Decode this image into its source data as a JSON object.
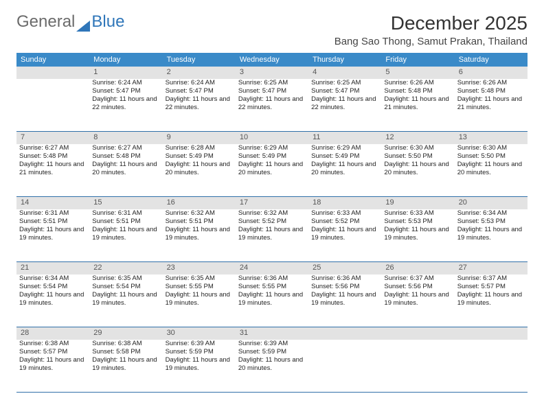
{
  "logo": {
    "part1": "General",
    "part2": "Blue"
  },
  "title": "December 2025",
  "location": "Bang Sao Thong, Samut Prakan, Thailand",
  "weekday_bg": "#3a8ac8",
  "daynum_bg": "#e3e3e3",
  "border_color": "#2f6fa8",
  "weekdays": [
    "Sunday",
    "Monday",
    "Tuesday",
    "Wednesday",
    "Thursday",
    "Friday",
    "Saturday"
  ],
  "weeks": [
    {
      "nums": [
        "",
        "1",
        "2",
        "3",
        "4",
        "5",
        "6"
      ],
      "cells": [
        {
          "sunrise": "",
          "sunset": "",
          "daylight": ""
        },
        {
          "sunrise": "Sunrise: 6:24 AM",
          "sunset": "Sunset: 5:47 PM",
          "daylight": "Daylight: 11 hours and 22 minutes."
        },
        {
          "sunrise": "Sunrise: 6:24 AM",
          "sunset": "Sunset: 5:47 PM",
          "daylight": "Daylight: 11 hours and 22 minutes."
        },
        {
          "sunrise": "Sunrise: 6:25 AM",
          "sunset": "Sunset: 5:47 PM",
          "daylight": "Daylight: 11 hours and 22 minutes."
        },
        {
          "sunrise": "Sunrise: 6:25 AM",
          "sunset": "Sunset: 5:47 PM",
          "daylight": "Daylight: 11 hours and 22 minutes."
        },
        {
          "sunrise": "Sunrise: 6:26 AM",
          "sunset": "Sunset: 5:48 PM",
          "daylight": "Daylight: 11 hours and 21 minutes."
        },
        {
          "sunrise": "Sunrise: 6:26 AM",
          "sunset": "Sunset: 5:48 PM",
          "daylight": "Daylight: 11 hours and 21 minutes."
        }
      ]
    },
    {
      "nums": [
        "7",
        "8",
        "9",
        "10",
        "11",
        "12",
        "13"
      ],
      "cells": [
        {
          "sunrise": "Sunrise: 6:27 AM",
          "sunset": "Sunset: 5:48 PM",
          "daylight": "Daylight: 11 hours and 21 minutes."
        },
        {
          "sunrise": "Sunrise: 6:27 AM",
          "sunset": "Sunset: 5:48 PM",
          "daylight": "Daylight: 11 hours and 20 minutes."
        },
        {
          "sunrise": "Sunrise: 6:28 AM",
          "sunset": "Sunset: 5:49 PM",
          "daylight": "Daylight: 11 hours and 20 minutes."
        },
        {
          "sunrise": "Sunrise: 6:29 AM",
          "sunset": "Sunset: 5:49 PM",
          "daylight": "Daylight: 11 hours and 20 minutes."
        },
        {
          "sunrise": "Sunrise: 6:29 AM",
          "sunset": "Sunset: 5:49 PM",
          "daylight": "Daylight: 11 hours and 20 minutes."
        },
        {
          "sunrise": "Sunrise: 6:30 AM",
          "sunset": "Sunset: 5:50 PM",
          "daylight": "Daylight: 11 hours and 20 minutes."
        },
        {
          "sunrise": "Sunrise: 6:30 AM",
          "sunset": "Sunset: 5:50 PM",
          "daylight": "Daylight: 11 hours and 20 minutes."
        }
      ]
    },
    {
      "nums": [
        "14",
        "15",
        "16",
        "17",
        "18",
        "19",
        "20"
      ],
      "cells": [
        {
          "sunrise": "Sunrise: 6:31 AM",
          "sunset": "Sunset: 5:51 PM",
          "daylight": "Daylight: 11 hours and 19 minutes."
        },
        {
          "sunrise": "Sunrise: 6:31 AM",
          "sunset": "Sunset: 5:51 PM",
          "daylight": "Daylight: 11 hours and 19 minutes."
        },
        {
          "sunrise": "Sunrise: 6:32 AM",
          "sunset": "Sunset: 5:51 PM",
          "daylight": "Daylight: 11 hours and 19 minutes."
        },
        {
          "sunrise": "Sunrise: 6:32 AM",
          "sunset": "Sunset: 5:52 PM",
          "daylight": "Daylight: 11 hours and 19 minutes."
        },
        {
          "sunrise": "Sunrise: 6:33 AM",
          "sunset": "Sunset: 5:52 PM",
          "daylight": "Daylight: 11 hours and 19 minutes."
        },
        {
          "sunrise": "Sunrise: 6:33 AM",
          "sunset": "Sunset: 5:53 PM",
          "daylight": "Daylight: 11 hours and 19 minutes."
        },
        {
          "sunrise": "Sunrise: 6:34 AM",
          "sunset": "Sunset: 5:53 PM",
          "daylight": "Daylight: 11 hours and 19 minutes."
        }
      ]
    },
    {
      "nums": [
        "21",
        "22",
        "23",
        "24",
        "25",
        "26",
        "27"
      ],
      "cells": [
        {
          "sunrise": "Sunrise: 6:34 AM",
          "sunset": "Sunset: 5:54 PM",
          "daylight": "Daylight: 11 hours and 19 minutes."
        },
        {
          "sunrise": "Sunrise: 6:35 AM",
          "sunset": "Sunset: 5:54 PM",
          "daylight": "Daylight: 11 hours and 19 minutes."
        },
        {
          "sunrise": "Sunrise: 6:35 AM",
          "sunset": "Sunset: 5:55 PM",
          "daylight": "Daylight: 11 hours and 19 minutes."
        },
        {
          "sunrise": "Sunrise: 6:36 AM",
          "sunset": "Sunset: 5:55 PM",
          "daylight": "Daylight: 11 hours and 19 minutes."
        },
        {
          "sunrise": "Sunrise: 6:36 AM",
          "sunset": "Sunset: 5:56 PM",
          "daylight": "Daylight: 11 hours and 19 minutes."
        },
        {
          "sunrise": "Sunrise: 6:37 AM",
          "sunset": "Sunset: 5:56 PM",
          "daylight": "Daylight: 11 hours and 19 minutes."
        },
        {
          "sunrise": "Sunrise: 6:37 AM",
          "sunset": "Sunset: 5:57 PM",
          "daylight": "Daylight: 11 hours and 19 minutes."
        }
      ]
    },
    {
      "nums": [
        "28",
        "29",
        "30",
        "31",
        "",
        "",
        ""
      ],
      "cells": [
        {
          "sunrise": "Sunrise: 6:38 AM",
          "sunset": "Sunset: 5:57 PM",
          "daylight": "Daylight: 11 hours and 19 minutes."
        },
        {
          "sunrise": "Sunrise: 6:38 AM",
          "sunset": "Sunset: 5:58 PM",
          "daylight": "Daylight: 11 hours and 19 minutes."
        },
        {
          "sunrise": "Sunrise: 6:39 AM",
          "sunset": "Sunset: 5:59 PM",
          "daylight": "Daylight: 11 hours and 19 minutes."
        },
        {
          "sunrise": "Sunrise: 6:39 AM",
          "sunset": "Sunset: 5:59 PM",
          "daylight": "Daylight: 11 hours and 20 minutes."
        },
        {
          "sunrise": "",
          "sunset": "",
          "daylight": ""
        },
        {
          "sunrise": "",
          "sunset": "",
          "daylight": ""
        },
        {
          "sunrise": "",
          "sunset": "",
          "daylight": ""
        }
      ]
    }
  ]
}
